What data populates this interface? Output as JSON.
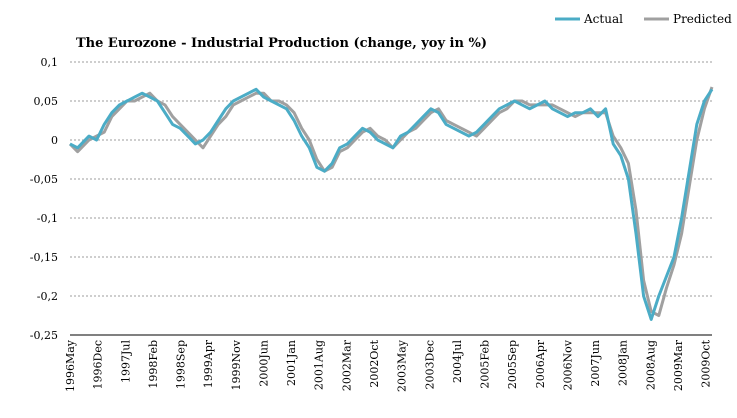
{
  "chart_data": {
    "type": "line",
    "title": "The Eurozone  - Industrial Production (change, yoy in %)",
    "xlabel": "",
    "ylabel": "",
    "ylim": [
      -0.25,
      0.1
    ],
    "yticks": [
      0.1,
      0.05,
      0,
      -0.05,
      -0.1,
      -0.15,
      -0.2,
      -0.25
    ],
    "ytick_labels": [
      "0,1",
      "0,05",
      "0",
      "-0,05",
      "-0,1",
      "-0,15",
      "-0,2",
      "-0,25"
    ],
    "x_start": "1996-05",
    "x_end": "2010-06",
    "xtick_labels": [
      "1996May",
      "1996Dec",
      "1997Jul",
      "1998Feb",
      "1998Sep",
      "1999Apr",
      "1999Nov",
      "2000Jun",
      "2001Jan",
      "2001Aug",
      "2002Mar",
      "2002Oct",
      "2003May",
      "2003Dec",
      "2004Jul",
      "2005Feb",
      "2005Sep",
      "2006Apr",
      "2006Nov",
      "2007Jun",
      "2008Jan",
      "2008Aug",
      "2009Mar",
      "2009Oct"
    ],
    "grid": true,
    "legend_position": "top-right",
    "series": [
      {
        "name": "Actual",
        "color": "#4bacc6",
        "x": [
          "1996-05",
          "1996-07",
          "1996-10",
          "1996-12",
          "1997-02",
          "1997-04",
          "1997-06",
          "1997-08",
          "1997-10",
          "1997-12",
          "1998-02",
          "1998-04",
          "1998-06",
          "1998-08",
          "1998-10",
          "1998-12",
          "1999-02",
          "1999-04",
          "1999-06",
          "1999-08",
          "1999-10",
          "1999-12",
          "2000-02",
          "2000-04",
          "2000-06",
          "2000-08",
          "2000-10",
          "2000-12",
          "2001-02",
          "2001-04",
          "2001-06",
          "2001-08",
          "2001-10",
          "2001-12",
          "2002-02",
          "2002-04",
          "2002-06",
          "2002-08",
          "2002-10",
          "2002-12",
          "2003-02",
          "2003-04",
          "2003-06",
          "2003-08",
          "2003-10",
          "2003-12",
          "2004-02",
          "2004-04",
          "2004-06",
          "2004-08",
          "2004-10",
          "2004-12",
          "2005-02",
          "2005-04",
          "2005-06",
          "2005-08",
          "2005-10",
          "2005-12",
          "2006-02",
          "2006-04",
          "2006-06",
          "2006-08",
          "2006-10",
          "2006-12",
          "2007-02",
          "2007-04",
          "2007-06",
          "2007-08",
          "2007-10",
          "2007-12",
          "2008-02",
          "2008-04",
          "2008-06",
          "2008-08",
          "2008-10",
          "2008-12",
          "2009-02",
          "2009-04",
          "2009-06",
          "2009-08",
          "2009-10",
          "2009-12",
          "2010-02",
          "2010-04",
          "2010-06"
        ],
        "values": [
          -0.005,
          -0.01,
          0.005,
          0.0,
          0.02,
          0.035,
          0.045,
          0.05,
          0.055,
          0.06,
          0.055,
          0.05,
          0.035,
          0.02,
          0.015,
          0.005,
          -0.005,
          0.0,
          0.01,
          0.025,
          0.04,
          0.05,
          0.055,
          0.06,
          0.065,
          0.055,
          0.05,
          0.045,
          0.04,
          0.025,
          0.005,
          -0.01,
          -0.035,
          -0.04,
          -0.03,
          -0.01,
          -0.005,
          0.005,
          0.015,
          0.01,
          0.0,
          -0.005,
          -0.01,
          0.005,
          0.01,
          0.02,
          0.03,
          0.04,
          0.035,
          0.02,
          0.015,
          0.01,
          0.005,
          0.01,
          0.02,
          0.03,
          0.04,
          0.045,
          0.05,
          0.045,
          0.04,
          0.045,
          0.05,
          0.04,
          0.035,
          0.03,
          0.035,
          0.035,
          0.04,
          0.03,
          0.04,
          -0.005,
          -0.02,
          -0.05,
          -0.12,
          -0.2,
          -0.23,
          -0.2,
          -0.175,
          -0.15,
          -0.1,
          -0.04,
          0.02,
          0.05,
          0.065
        ]
      },
      {
        "name": "Predicted",
        "color": "#a0a0a0",
        "x": [
          "1996-05",
          "1996-07",
          "1996-10",
          "1996-12",
          "1997-02",
          "1997-04",
          "1997-06",
          "1997-08",
          "1997-10",
          "1997-12",
          "1998-02",
          "1998-04",
          "1998-06",
          "1998-08",
          "1998-10",
          "1998-12",
          "1999-02",
          "1999-04",
          "1999-06",
          "1999-08",
          "1999-10",
          "1999-12",
          "2000-02",
          "2000-04",
          "2000-06",
          "2000-08",
          "2000-10",
          "2000-12",
          "2001-02",
          "2001-04",
          "2001-06",
          "2001-08",
          "2001-10",
          "2001-12",
          "2002-02",
          "2002-04",
          "2002-06",
          "2002-08",
          "2002-10",
          "2002-12",
          "2003-02",
          "2003-04",
          "2003-06",
          "2003-08",
          "2003-10",
          "2003-12",
          "2004-02",
          "2004-04",
          "2004-06",
          "2004-08",
          "2004-10",
          "2004-12",
          "2005-02",
          "2005-04",
          "2005-06",
          "2005-08",
          "2005-10",
          "2005-12",
          "2006-02",
          "2006-04",
          "2006-06",
          "2006-08",
          "2006-10",
          "2006-12",
          "2007-02",
          "2007-04",
          "2007-06",
          "2007-08",
          "2007-10",
          "2007-12",
          "2008-02",
          "2008-04",
          "2008-06",
          "2008-08",
          "2008-10",
          "2008-12",
          "2009-02",
          "2009-04",
          "2009-06",
          "2009-08",
          "2009-10",
          "2009-12",
          "2010-02",
          "2010-04",
          "2010-06"
        ],
        "values": [
          -0.005,
          -0.015,
          0.0,
          0.005,
          0.01,
          0.03,
          0.04,
          0.05,
          0.05,
          0.055,
          0.06,
          0.05,
          0.045,
          0.03,
          0.02,
          0.01,
          0.0,
          -0.01,
          0.005,
          0.02,
          0.03,
          0.045,
          0.05,
          0.055,
          0.06,
          0.06,
          0.05,
          0.05,
          0.045,
          0.035,
          0.015,
          0.0,
          -0.025,
          -0.04,
          -0.035,
          -0.015,
          -0.01,
          0.0,
          0.01,
          0.015,
          0.005,
          0.0,
          -0.01,
          0.0,
          0.01,
          0.015,
          0.025,
          0.035,
          0.04,
          0.025,
          0.02,
          0.015,
          0.01,
          0.005,
          0.015,
          0.025,
          0.035,
          0.04,
          0.05,
          0.05,
          0.045,
          0.045,
          0.045,
          0.045,
          0.04,
          0.035,
          0.03,
          0.035,
          0.035,
          0.035,
          0.035,
          0.005,
          -0.01,
          -0.03,
          -0.09,
          -0.18,
          -0.22,
          -0.225,
          -0.19,
          -0.16,
          -0.12,
          -0.06,
          0.0,
          0.04,
          0.068
        ]
      }
    ]
  }
}
